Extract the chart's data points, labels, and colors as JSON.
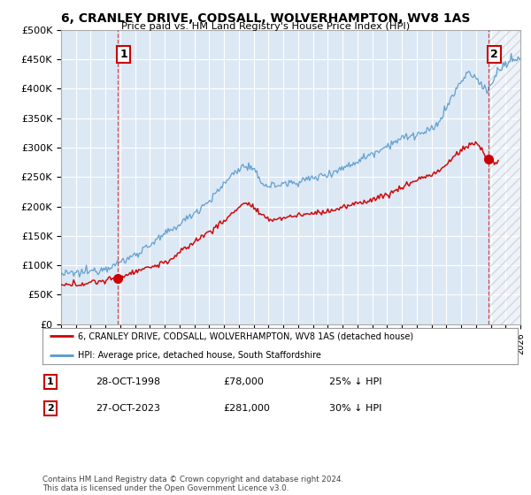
{
  "title": "6, CRANLEY DRIVE, CODSALL, WOLVERHAMPTON, WV8 1AS",
  "subtitle": "Price paid vs. HM Land Registry's House Price Index (HPI)",
  "ylim": [
    0,
    500000
  ],
  "yticks": [
    0,
    50000,
    100000,
    150000,
    200000,
    250000,
    300000,
    350000,
    400000,
    450000,
    500000
  ],
  "ytick_labels": [
    "£0",
    "£50K",
    "£100K",
    "£150K",
    "£200K",
    "£250K",
    "£300K",
    "£350K",
    "£400K",
    "£450K",
    "£500K"
  ],
  "xlim_start": 1995,
  "xlim_end": 2026,
  "legend_line1": "6, CRANLEY DRIVE, CODSALL, WOLVERHAMPTON, WV8 1AS (detached house)",
  "legend_line2": "HPI: Average price, detached house, South Staffordshire",
  "line1_color": "#cc0000",
  "line2_color": "#5599cc",
  "point1_date": "28-OCT-1998",
  "point1_price": "£78,000",
  "point1_hpi": "25% ↓ HPI",
  "point1_x": 1998.82,
  "point1_y": 78000,
  "point2_date": "27-OCT-2023",
  "point2_price": "£281,000",
  "point2_hpi": "30% ↓ HPI",
  "point2_x": 2023.82,
  "point2_y": 281000,
  "footnote": "Contains HM Land Registry data © Crown copyright and database right 2024.\nThis data is licensed under the Open Government Licence v3.0.",
  "bg_color": "#ffffff",
  "plot_bg_color": "#dde8f5",
  "grid_color": "#ffffff",
  "vline1_x": 1998.82,
  "vline2_x": 2023.82,
  "hatch_color": "#bbbbbb"
}
